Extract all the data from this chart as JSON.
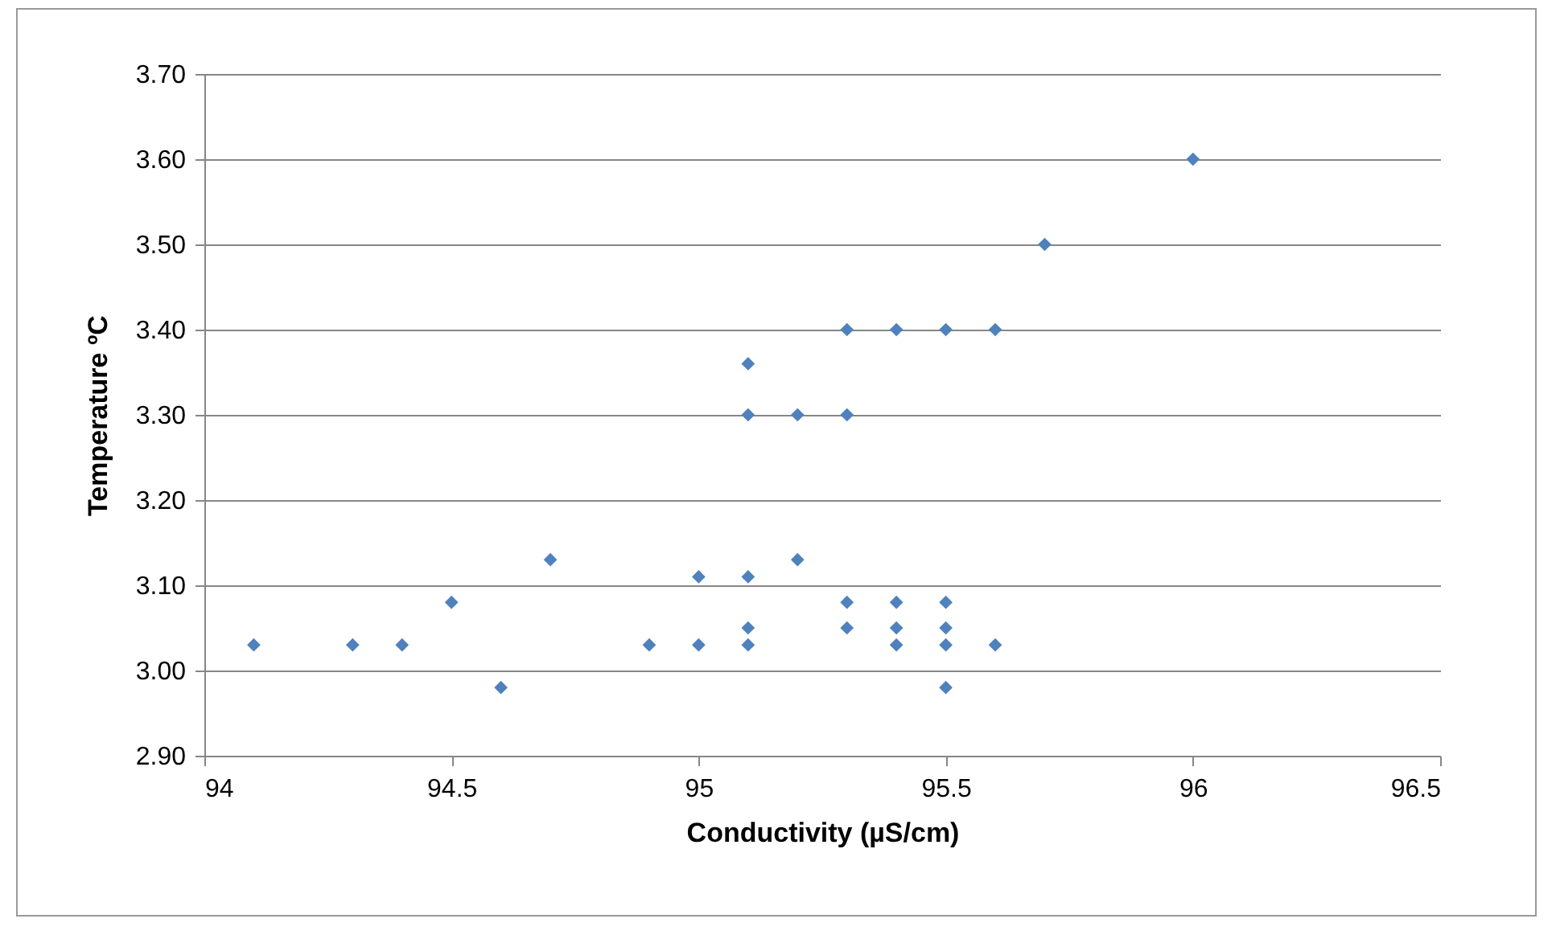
{
  "chart_data": {
    "type": "scatter",
    "xlabel": "Conductivity (µS/cm)",
    "ylabel": "Temperature ºC",
    "x": [
      94.1,
      94.3,
      94.4,
      94.5,
      94.6,
      94.7,
      94.9,
      95.0,
      95.0,
      95.1,
      95.1,
      95.1,
      95.1,
      95.1,
      95.2,
      95.2,
      95.3,
      95.3,
      95.3,
      95.3,
      95.4,
      95.4,
      95.4,
      95.4,
      95.5,
      95.5,
      95.5,
      95.5,
      95.5,
      95.6,
      95.6,
      95.7,
      96.0
    ],
    "values": [
      3.03,
      3.03,
      3.03,
      3.08,
      2.98,
      3.13,
      3.03,
      3.03,
      3.11,
      3.36,
      3.3,
      3.11,
      3.05,
      3.03,
      3.3,
      3.13,
      3.4,
      3.3,
      3.08,
      3.05,
      3.4,
      3.08,
      3.05,
      3.03,
      3.4,
      3.08,
      3.05,
      3.03,
      2.98,
      3.4,
      3.03,
      3.5,
      3.6
    ],
    "color": "#4f81bd",
    "marker": "diamond",
    "grid": "y",
    "xlim": [
      94,
      96.5
    ],
    "xticks": [
      94,
      94.5,
      95,
      95.5,
      96,
      96.5
    ],
    "ylim": [
      2.9,
      3.7
    ],
    "yticks": [
      {
        "value": 2.9,
        "label": "2.90"
      },
      {
        "value": 3.0,
        "label": "3.00"
      },
      {
        "value": 3.1,
        "label": "3.10"
      },
      {
        "value": 3.2,
        "label": "3.20"
      },
      {
        "value": 3.3,
        "label": "3.30"
      },
      {
        "value": 3.4,
        "label": "3.40"
      },
      {
        "value": 3.5,
        "label": "3.50"
      },
      {
        "value": 3.6,
        "label": "3.60"
      },
      {
        "value": 3.7,
        "label": "3.70"
      }
    ]
  }
}
